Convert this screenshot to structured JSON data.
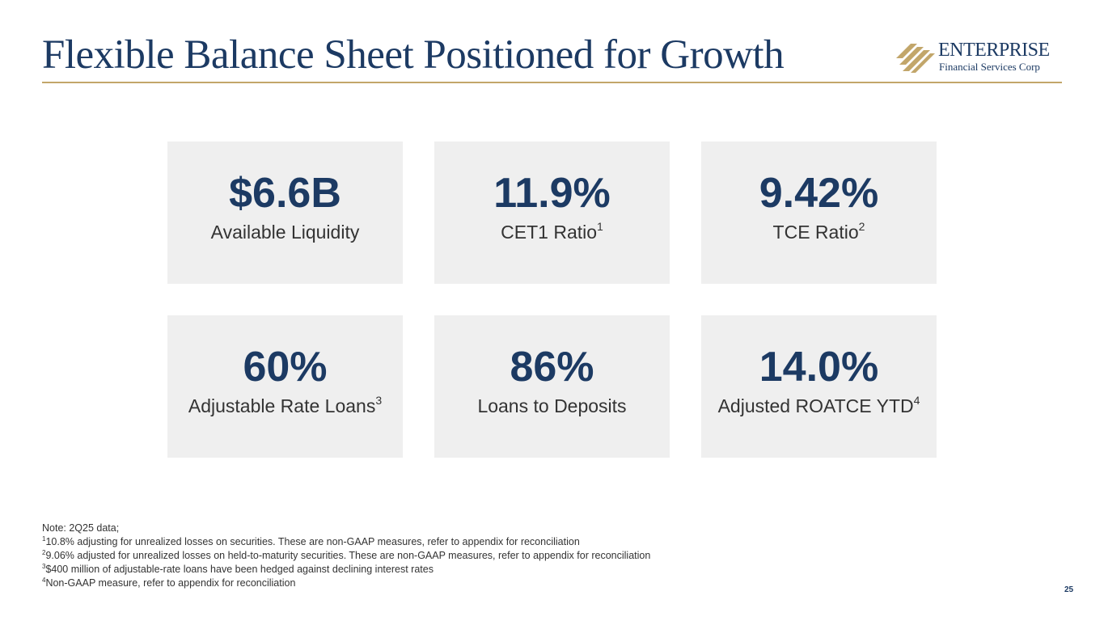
{
  "header": {
    "title": "Flexible Balance Sheet Positioned for Growth"
  },
  "logo": {
    "name": "ENTERPRISE",
    "subtitle": "Financial Services Corp"
  },
  "colors": {
    "navy": "#1c3a63",
    "gold": "#c2a66a",
    "card_bg": "#efefef"
  },
  "metrics": [
    {
      "value": "$6.6B",
      "label": "Available Liquidity",
      "footnote": ""
    },
    {
      "value": "11.9%",
      "label": "CET1 Ratio",
      "footnote": "1"
    },
    {
      "value": "9.42%",
      "label": "TCE Ratio",
      "footnote": "2"
    },
    {
      "value": "60%",
      "label": "Adjustable Rate Loans",
      "footnote": "3"
    },
    {
      "value": "86%",
      "label": "Loans to Deposits",
      "footnote": ""
    },
    {
      "value": "14.0%",
      "label": "Adjusted ROATCE YTD",
      "footnote": "4"
    }
  ],
  "notes": {
    "intro": "Note: 2Q25 data;",
    "items": [
      {
        "marker": "1",
        "text": "10.8% adjusting for unrealized losses on securities. These are non-GAAP measures, refer to appendix for reconciliation"
      },
      {
        "marker": "2",
        "text": "9.06% adjusted for unrealized losses on held-to-maturity securities. These are non-GAAP measures, refer to appendix for reconciliation"
      },
      {
        "marker": "3",
        "text": "$400 million of adjustable-rate loans have been hedged against declining interest rates"
      },
      {
        "marker": "4",
        "text": "Non-GAAP measure, refer to appendix for reconciliation"
      }
    ]
  },
  "page_number": "25"
}
